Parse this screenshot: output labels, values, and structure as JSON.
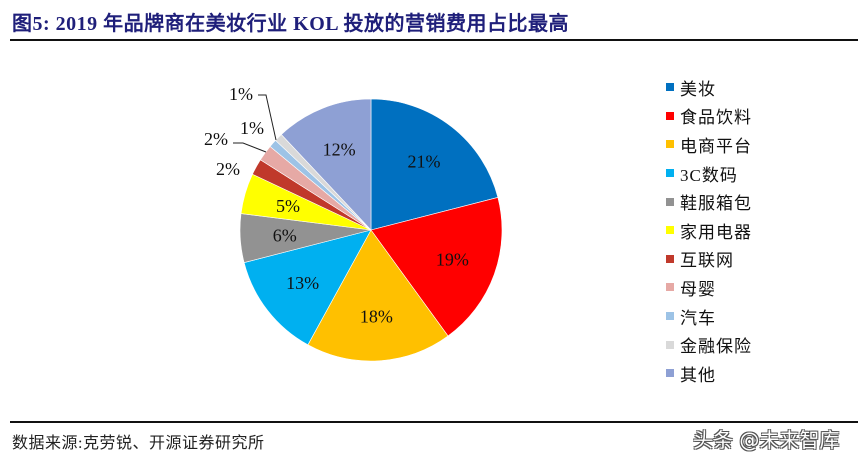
{
  "header": {
    "title": "图5:  2019 年品牌商在美妆行业 KOL 投放的营销费用占比最高"
  },
  "footer": {
    "source": "数据来源:克劳锐、开源证券研究所",
    "watermark": "头条 @未来智库"
  },
  "chart_data": {
    "type": "pie",
    "title": "2019 年品牌商在美妆行业 KOL 投放的营销费用占比最高",
    "categories": [
      "美妆",
      "食品饮料",
      "电商平台",
      "3C数码",
      "鞋服箱包",
      "家用电器",
      "互联网",
      "母婴",
      "汽车",
      "金融保险",
      "其他"
    ],
    "values": [
      21,
      19,
      18,
      13,
      6,
      5,
      2,
      2,
      1,
      1,
      12
    ],
    "labels": [
      "21%",
      "19%",
      "18%",
      "13%",
      "6%",
      "5%",
      "2%",
      "2%",
      "1%",
      "1%",
      "12%"
    ],
    "colors": [
      "#0070c0",
      "#ff0000",
      "#ffc000",
      "#00b0f0",
      "#929292",
      "#ffff00",
      "#c0392b",
      "#e6a9a5",
      "#9dc3e6",
      "#d9d9d9",
      "#8ea0d4"
    ],
    "start_angle_deg": 0,
    "direction": "clockwise",
    "legend_position": "right",
    "unit": "%"
  },
  "legend": {
    "items": [
      {
        "label": "美妆",
        "color": "#0070c0"
      },
      {
        "label": "食品饮料",
        "color": "#ff0000"
      },
      {
        "label": "电商平台",
        "color": "#ffc000"
      },
      {
        "label": "3C数码",
        "color": "#00b0f0"
      },
      {
        "label": "鞋服箱包",
        "color": "#929292"
      },
      {
        "label": "家用电器",
        "color": "#ffff00"
      },
      {
        "label": "互联网",
        "color": "#c0392b"
      },
      {
        "label": "母婴",
        "color": "#e6a9a5"
      },
      {
        "label": "汽车",
        "color": "#9dc3e6"
      },
      {
        "label": "金融保险",
        "color": "#d9d9d9"
      },
      {
        "label": "其他",
        "color": "#8ea0d4"
      }
    ]
  }
}
